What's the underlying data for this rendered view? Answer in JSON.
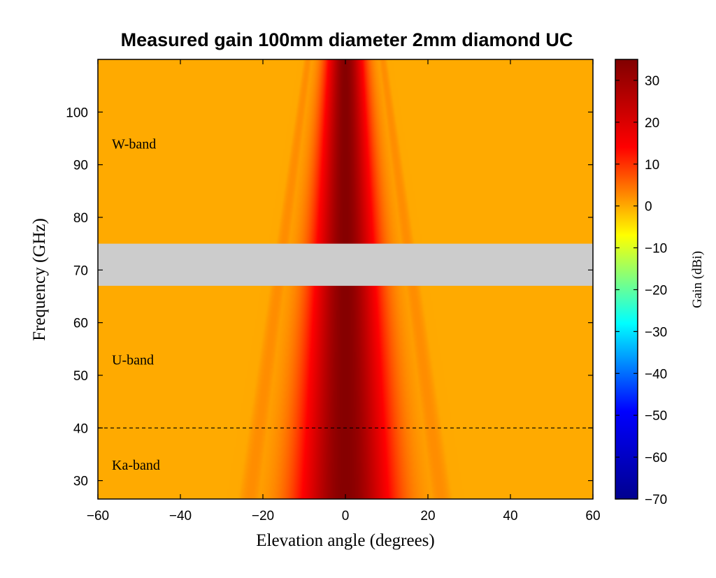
{
  "chart_data": {
    "type": "heatmap",
    "title": "Measured gain 100mm diameter 2mm diamond UC",
    "xlabel": "Elevation angle (degrees)",
    "ylabel": "Frequency (GHz)",
    "xlim": [
      -60,
      60
    ],
    "ylim": [
      26.5,
      110
    ],
    "x_ticks": [
      -60,
      -40,
      -20,
      0,
      20,
      40,
      60
    ],
    "y_ticks": [
      30,
      40,
      50,
      60,
      70,
      80,
      90,
      100
    ],
    "colorbar": {
      "label": "Gain (dBi)",
      "range": [
        -70,
        35
      ],
      "ticks": [
        30,
        20,
        10,
        0,
        -10,
        -20,
        -30,
        -40,
        -50,
        -60,
        -70
      ],
      "colormap": [
        "#00008f",
        "#0000ff",
        "#00ffff",
        "#ffff00",
        "#ff0000",
        "#800000"
      ]
    },
    "gap_band_ghz": [
      67,
      75
    ],
    "gap_color": "#cccccc",
    "divider_ghz": 40,
    "band_labels": [
      {
        "text": "W-band",
        "freq_ghz": 94
      },
      {
        "text": "U-band",
        "freq_ghz": 53
      },
      {
        "text": "Ka-band",
        "freq_ghz": 33
      }
    ],
    "gain_model": {
      "peak_dbi": 34,
      "sidelobe_floor_dbi": -8,
      "beam_half_width_deg_at_30ghz": 8,
      "beam_half_width_deg_at_110ghz": 3.2
    }
  }
}
